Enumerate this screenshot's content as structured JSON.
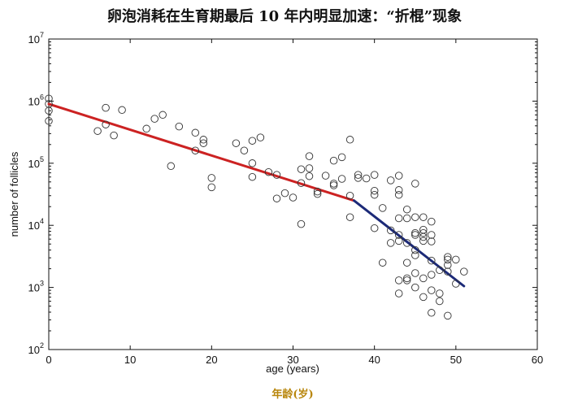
{
  "title": "卵泡消耗在生育期最后 10 年内明显加速：“折棍”现象",
  "subtitle_cn_xlabel": "年龄(岁)",
  "chart_data": {
    "type": "scatter",
    "xlabel": "age (years)",
    "ylabel": "number of follicles",
    "xlim": [
      0,
      60
    ],
    "ylim": [
      100,
      10000000
    ],
    "yscale": "log",
    "xticks": [
      "0",
      "10",
      "20",
      "30",
      "40",
      "50",
      "60"
    ],
    "yticks": [
      {
        "value": 100,
        "base": "10",
        "exp": "2"
      },
      {
        "value": 1000,
        "base": "10",
        "exp": "3"
      },
      {
        "value": 10000,
        "base": "10",
        "exp": "4"
      },
      {
        "value": 100000,
        "base": "10",
        "exp": "5"
      },
      {
        "value": 1000000,
        "base": "10",
        "exp": "6"
      },
      {
        "value": 10000000,
        "base": "10",
        "exp": "7"
      }
    ],
    "grid": false,
    "points": [
      [
        0,
        1100000
      ],
      [
        0,
        900000
      ],
      [
        0,
        700000
      ],
      [
        0,
        480000
      ],
      [
        6,
        330000
      ],
      [
        7,
        780000
      ],
      [
        7,
        420000
      ],
      [
        8,
        280000
      ],
      [
        9,
        720000
      ],
      [
        12,
        360000
      ],
      [
        13,
        520000
      ],
      [
        14,
        600000
      ],
      [
        15,
        90000
      ],
      [
        16,
        390000
      ],
      [
        18,
        160000
      ],
      [
        18,
        310000
      ],
      [
        19,
        210000
      ],
      [
        19,
        240000
      ],
      [
        20,
        58000
      ],
      [
        20,
        41000
      ],
      [
        23,
        210000
      ],
      [
        24,
        160000
      ],
      [
        25,
        230000
      ],
      [
        25,
        100000
      ],
      [
        25,
        60000
      ],
      [
        26,
        260000
      ],
      [
        27,
        72000
      ],
      [
        28,
        65000
      ],
      [
        28,
        27000
      ],
      [
        29,
        33000
      ],
      [
        30,
        28000
      ],
      [
        31,
        80000
      ],
      [
        31,
        48000
      ],
      [
        31,
        10500
      ],
      [
        32,
        130000
      ],
      [
        32,
        83000
      ],
      [
        32,
        62000
      ],
      [
        33,
        35000
      ],
      [
        33,
        32000
      ],
      [
        34,
        63000
      ],
      [
        35,
        110000
      ],
      [
        35,
        47000
      ],
      [
        35,
        44000
      ],
      [
        36,
        125000
      ],
      [
        36,
        56000
      ],
      [
        37,
        240000
      ],
      [
        37,
        30000
      ],
      [
        37,
        13500
      ],
      [
        38,
        65000
      ],
      [
        38,
        58000
      ],
      [
        39,
        57000
      ],
      [
        40,
        65000
      ],
      [
        40,
        36000
      ],
      [
        40,
        31000
      ],
      [
        40,
        9000
      ],
      [
        41,
        19000
      ],
      [
        41,
        2500
      ],
      [
        42,
        53000
      ],
      [
        42,
        8300
      ],
      [
        42,
        5200
      ],
      [
        43,
        63000
      ],
      [
        43,
        37000
      ],
      [
        43,
        31000
      ],
      [
        43,
        13000
      ],
      [
        43,
        7000
      ],
      [
        43,
        5600
      ],
      [
        43,
        1300
      ],
      [
        43,
        800
      ],
      [
        44,
        18000
      ],
      [
        44,
        13000
      ],
      [
        44,
        5200
      ],
      [
        44,
        2500
      ],
      [
        44,
        1400
      ],
      [
        44,
        1300
      ],
      [
        45,
        47000
      ],
      [
        45,
        13500
      ],
      [
        45,
        7500
      ],
      [
        45,
        7000
      ],
      [
        45,
        4000
      ],
      [
        45,
        3300
      ],
      [
        45,
        1700
      ],
      [
        45,
        1000
      ],
      [
        46,
        13500
      ],
      [
        46,
        8500
      ],
      [
        46,
        7500
      ],
      [
        46,
        6500
      ],
      [
        46,
        5600
      ],
      [
        46,
        1400
      ],
      [
        46,
        700
      ],
      [
        47,
        11500
      ],
      [
        47,
        7000
      ],
      [
        47,
        5500
      ],
      [
        47,
        2700
      ],
      [
        47,
        1600
      ],
      [
        47,
        900
      ],
      [
        47,
        390
      ],
      [
        48,
        1900
      ],
      [
        48,
        600
      ],
      [
        48,
        800
      ],
      [
        49,
        3100
      ],
      [
        49,
        2800
      ],
      [
        49,
        2300
      ],
      [
        49,
        1800
      ],
      [
        49,
        350
      ],
      [
        50,
        2800
      ],
      [
        50,
        1150
      ],
      [
        51,
        1800
      ]
    ],
    "lines": [
      {
        "color": "#cc2222",
        "points": [
          [
            0,
            900000
          ],
          [
            37.5,
            25000
          ]
        ]
      },
      {
        "color": "#1c2a78",
        "points": [
          [
            37.5,
            25000
          ],
          [
            51,
            1050
          ]
        ]
      }
    ]
  }
}
